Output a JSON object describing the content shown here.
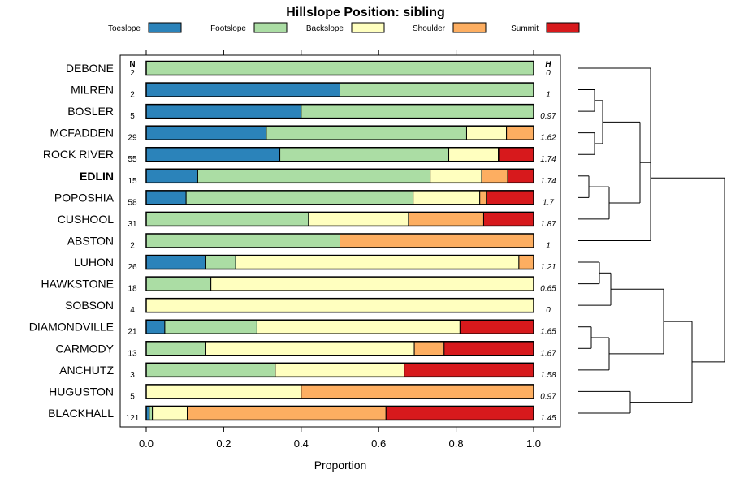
{
  "colors": {
    "Toeslope": "#2b83ba",
    "Footslope": "#abdda4",
    "Backslope": "#ffffbf",
    "Shoulder": "#fdae61",
    "Summit": "#d7191c"
  },
  "chart_data": {
    "type": "bar",
    "orientation": "horizontal",
    "stacked": true,
    "title": "Hillslope Position: sibling",
    "xlabel": "Proportion",
    "ylabel": "",
    "xlim": [
      0,
      1
    ],
    "xticks": [
      "0.0",
      "0.2",
      "0.4",
      "0.6",
      "0.8",
      "1.0"
    ],
    "n_header": "N",
    "h_header": "H",
    "legend": [
      "Toeslope",
      "Footslope",
      "Backslope",
      "Shoulder",
      "Summit"
    ],
    "legend_position": "top",
    "bold_category": "EDLIN",
    "rows": [
      {
        "label": "DEBONE",
        "n": "2",
        "h": "0",
        "values": [
          0,
          1.0,
          0,
          0,
          0
        ]
      },
      {
        "label": "MILREN",
        "n": "2",
        "h": "1",
        "values": [
          0.5,
          0.5,
          0,
          0,
          0
        ]
      },
      {
        "label": "BOSLER",
        "n": "5",
        "h": "0.97",
        "values": [
          0.4,
          0.6,
          0,
          0,
          0
        ]
      },
      {
        "label": "MCFADDEN",
        "n": "29",
        "h": "1.62",
        "values": [
          0.31,
          0.517,
          0.103,
          0.07,
          0
        ]
      },
      {
        "label": "ROCK RIVER",
        "n": "55",
        "h": "1.74",
        "values": [
          0.345,
          0.436,
          0.128,
          0.001,
          0.09
        ]
      },
      {
        "label": "EDLIN",
        "n": "15",
        "h": "1.74",
        "values": [
          0.133,
          0.6,
          0.133,
          0.067,
          0.067
        ]
      },
      {
        "label": "POPOSHIA",
        "n": "58",
        "h": "1.7",
        "values": [
          0.103,
          0.586,
          0.172,
          0.017,
          0.122
        ]
      },
      {
        "label": "CUSHOOL",
        "n": "31",
        "h": "1.87",
        "values": [
          0,
          0.419,
          0.258,
          0.194,
          0.129
        ]
      },
      {
        "label": "ABSTON",
        "n": "2",
        "h": "1",
        "values": [
          0,
          0.5,
          0,
          0.5,
          0
        ]
      },
      {
        "label": "LUHON",
        "n": "26",
        "h": "1.21",
        "values": [
          0.154,
          0.077,
          0.731,
          0.038,
          0
        ]
      },
      {
        "label": "HAWKSTONE",
        "n": "18",
        "h": "0.65",
        "values": [
          0,
          0.167,
          0.833,
          0,
          0
        ]
      },
      {
        "label": "SOBSON",
        "n": "4",
        "h": "0",
        "values": [
          0,
          0,
          1.0,
          0,
          0
        ]
      },
      {
        "label": "DIAMONDVILLE",
        "n": "21",
        "h": "1.65",
        "values": [
          0.048,
          0.238,
          0.524,
          0,
          0.19
        ]
      },
      {
        "label": "CARMODY",
        "n": "13",
        "h": "1.67",
        "values": [
          0,
          0.154,
          0.538,
          0.077,
          0.231
        ]
      },
      {
        "label": "ANCHUTZ",
        "n": "3",
        "h": "1.58",
        "values": [
          0,
          0.333,
          0.333,
          0,
          0.334
        ]
      },
      {
        "label": "HUGUSTON",
        "n": "5",
        "h": "0.97",
        "values": [
          0,
          0,
          0.4,
          0.6,
          0
        ]
      },
      {
        "label": "BLACKHALL",
        "n": "121",
        "h": "1.45",
        "values": [
          0.008,
          0.008,
          0.09,
          0.513,
          0.381
        ]
      }
    ],
    "dendrogram": {
      "type": "hierarchical-clustering",
      "merges": [
        {
          "a": "MCFADDEN",
          "b": "ROCK RIVER",
          "height": 0.1
        },
        {
          "a": "EDLIN",
          "b": "POPOSHIA",
          "height": 0.06
        },
        {
          "a": "ANCHUTZ",
          "b": "CARMODY",
          "height": 0.25
        },
        {
          "a": "DIAMONDVILLE",
          "b": "CARMODY",
          "height": 0.1
        },
        {
          "a": "LUHON",
          "b": "HAWKSTONE",
          "height": 0.2
        }
      ]
    }
  }
}
